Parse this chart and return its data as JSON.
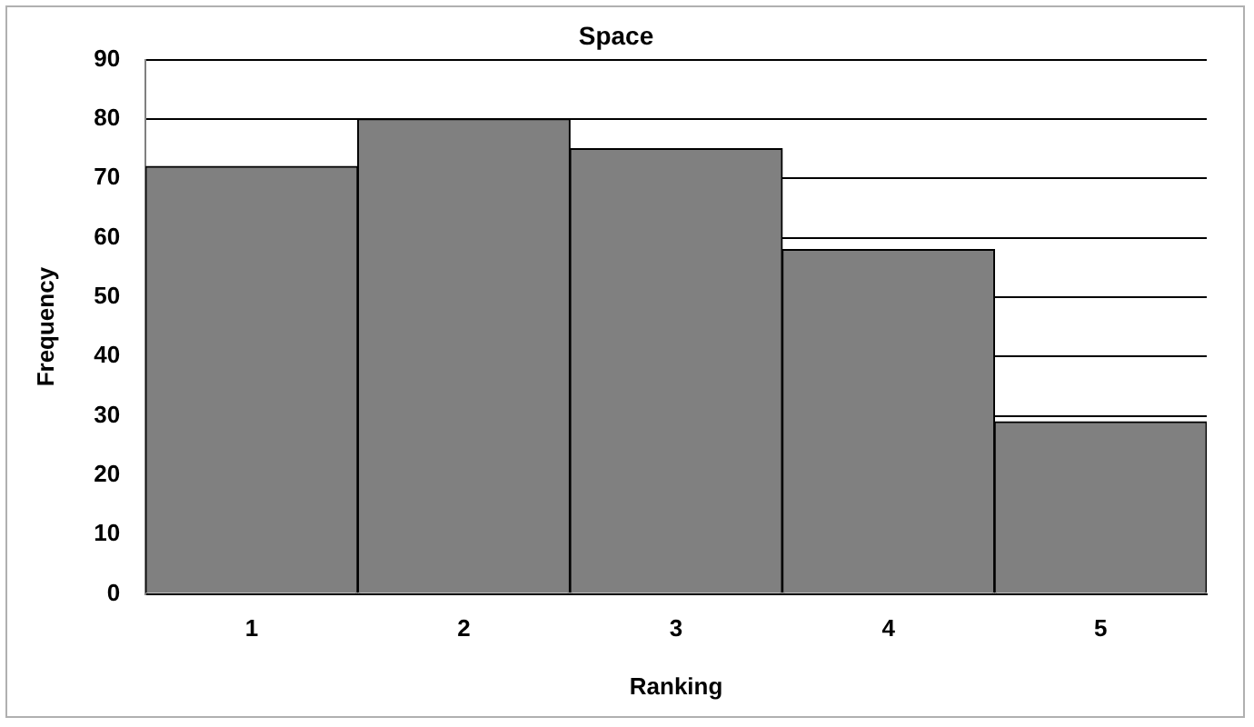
{
  "chart_data": {
    "type": "bar",
    "title": "Space",
    "xlabel": "Ranking",
    "ylabel": "Frequency",
    "categories": [
      "1",
      "2",
      "3",
      "4",
      "5"
    ],
    "values": [
      72,
      80,
      75,
      58,
      29
    ],
    "color": "#808080",
    "ylim": [
      0,
      90
    ],
    "yticks": [
      0,
      10,
      20,
      30,
      40,
      50,
      60,
      70,
      80,
      90
    ],
    "grid": "y",
    "legend": false
  }
}
